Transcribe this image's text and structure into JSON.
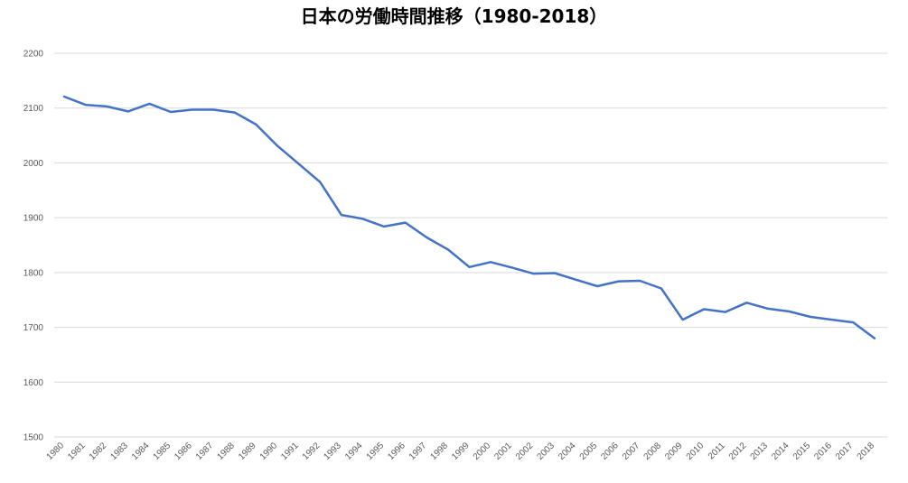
{
  "chart_data": {
    "type": "line",
    "title": "日本の労働時間推移（1980-2018）",
    "xlabel": "",
    "ylabel": "",
    "ylim": [
      1500,
      2200
    ],
    "yticks": [
      1500,
      1600,
      1700,
      1800,
      1900,
      2000,
      2100,
      2200
    ],
    "grid": true,
    "legend": "none",
    "line_color": "#4472c4",
    "grid_color": "#d9d9d9",
    "categories": [
      "1980",
      "1981",
      "1982",
      "1983",
      "1984",
      "1985",
      "1986",
      "1987",
      "1988",
      "1989",
      "1990",
      "1991",
      "1992",
      "1993",
      "1994",
      "1995",
      "1996",
      "1997",
      "1998",
      "1999",
      "2000",
      "2001",
      "2002",
      "2003",
      "2004",
      "2005",
      "2006",
      "2007",
      "2008",
      "2009",
      "2010",
      "2011",
      "2012",
      "2013",
      "2014",
      "2015",
      "2016",
      "2017",
      "2018"
    ],
    "series": [
      {
        "values": [
          2121,
          2106,
          2103,
          2094,
          2108,
          2093,
          2097,
          2097,
          2092,
          2070,
          2031,
          1998,
          1965,
          1905,
          1898,
          1884,
          1891,
          1864,
          1842,
          1810,
          1819,
          1809,
          1798,
          1799,
          1787,
          1775,
          1784,
          1785,
          1771,
          1714,
          1733,
          1728,
          1745,
          1734,
          1729,
          1719,
          1714,
          1709,
          1680
        ]
      }
    ]
  }
}
